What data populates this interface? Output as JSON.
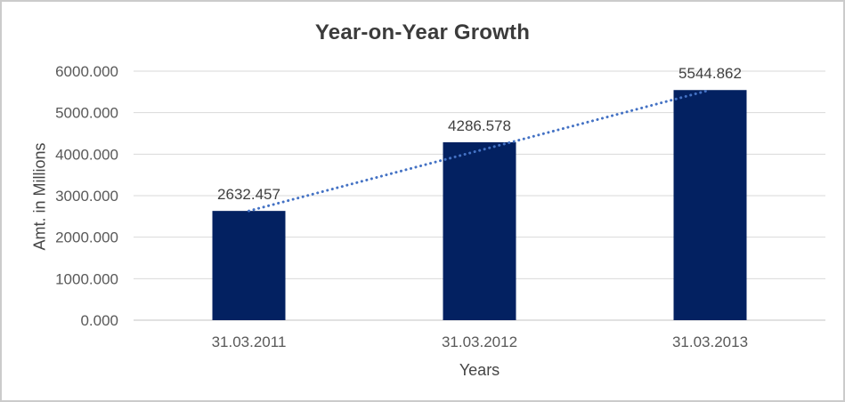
{
  "chart_data": {
    "type": "bar",
    "title": "Year-on-Year Growth",
    "xlabel": "Years",
    "ylabel": "Amt. in Millions",
    "categories": [
      "31.03.2011",
      "31.03.2012",
      "31.03.2013"
    ],
    "values": [
      2632.457,
      4286.578,
      5544.862
    ],
    "data_labels": [
      "2632.457",
      "4286.578",
      "5544.862"
    ],
    "y_ticks": [
      "0.000",
      "1000.000",
      "2000.000",
      "3000.000",
      "4000.000",
      "5000.000",
      "6000.000"
    ],
    "ylim": [
      0,
      6000
    ],
    "grid": true,
    "legend": "none",
    "trendline": {
      "type": "linear",
      "style": "dotted",
      "color": "#4472C4"
    },
    "colors": {
      "bar": "#032161",
      "gridline": "#d9d9d9",
      "axis_line": "#c3c3c3",
      "title_text": "#3b3b3b",
      "tick_text": "#595959",
      "data_label_text": "#404040",
      "border": "#cbcbcb"
    }
  }
}
